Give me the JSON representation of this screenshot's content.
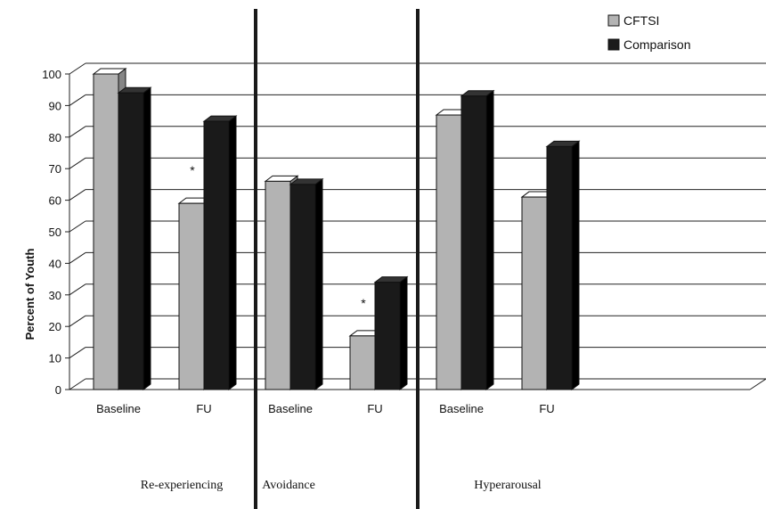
{
  "chart_data": {
    "type": "bar",
    "ylabel": "Percent of Youth",
    "ylim": [
      0,
      100
    ],
    "yticks": [
      0,
      10,
      20,
      30,
      40,
      50,
      60,
      70,
      80,
      90,
      100
    ],
    "grid": true,
    "legend_position": "top-right",
    "categories": [
      "Baseline",
      "FU",
      "Baseline",
      "FU",
      "Baseline",
      "FU"
    ],
    "groups": [
      {
        "label": "Re-experiencing",
        "categories": [
          "Baseline",
          "FU"
        ]
      },
      {
        "label": "Avoidance",
        "categories": [
          "Baseline",
          "FU"
        ]
      },
      {
        "label": "Hyperarousal",
        "categories": [
          "Baseline",
          "FU"
        ]
      }
    ],
    "series": [
      {
        "name": "CFTSI",
        "color": "#b3b3b3",
        "values": [
          100,
          59,
          66,
          17,
          87,
          61
        ]
      },
      {
        "name": "Comparison",
        "color": "#1a1a1a",
        "values": [
          94,
          85,
          65,
          34,
          93,
          77
        ]
      }
    ],
    "annotations": [
      {
        "category_index": 1,
        "text": "*"
      },
      {
        "category_index": 3,
        "text": "*"
      }
    ]
  }
}
